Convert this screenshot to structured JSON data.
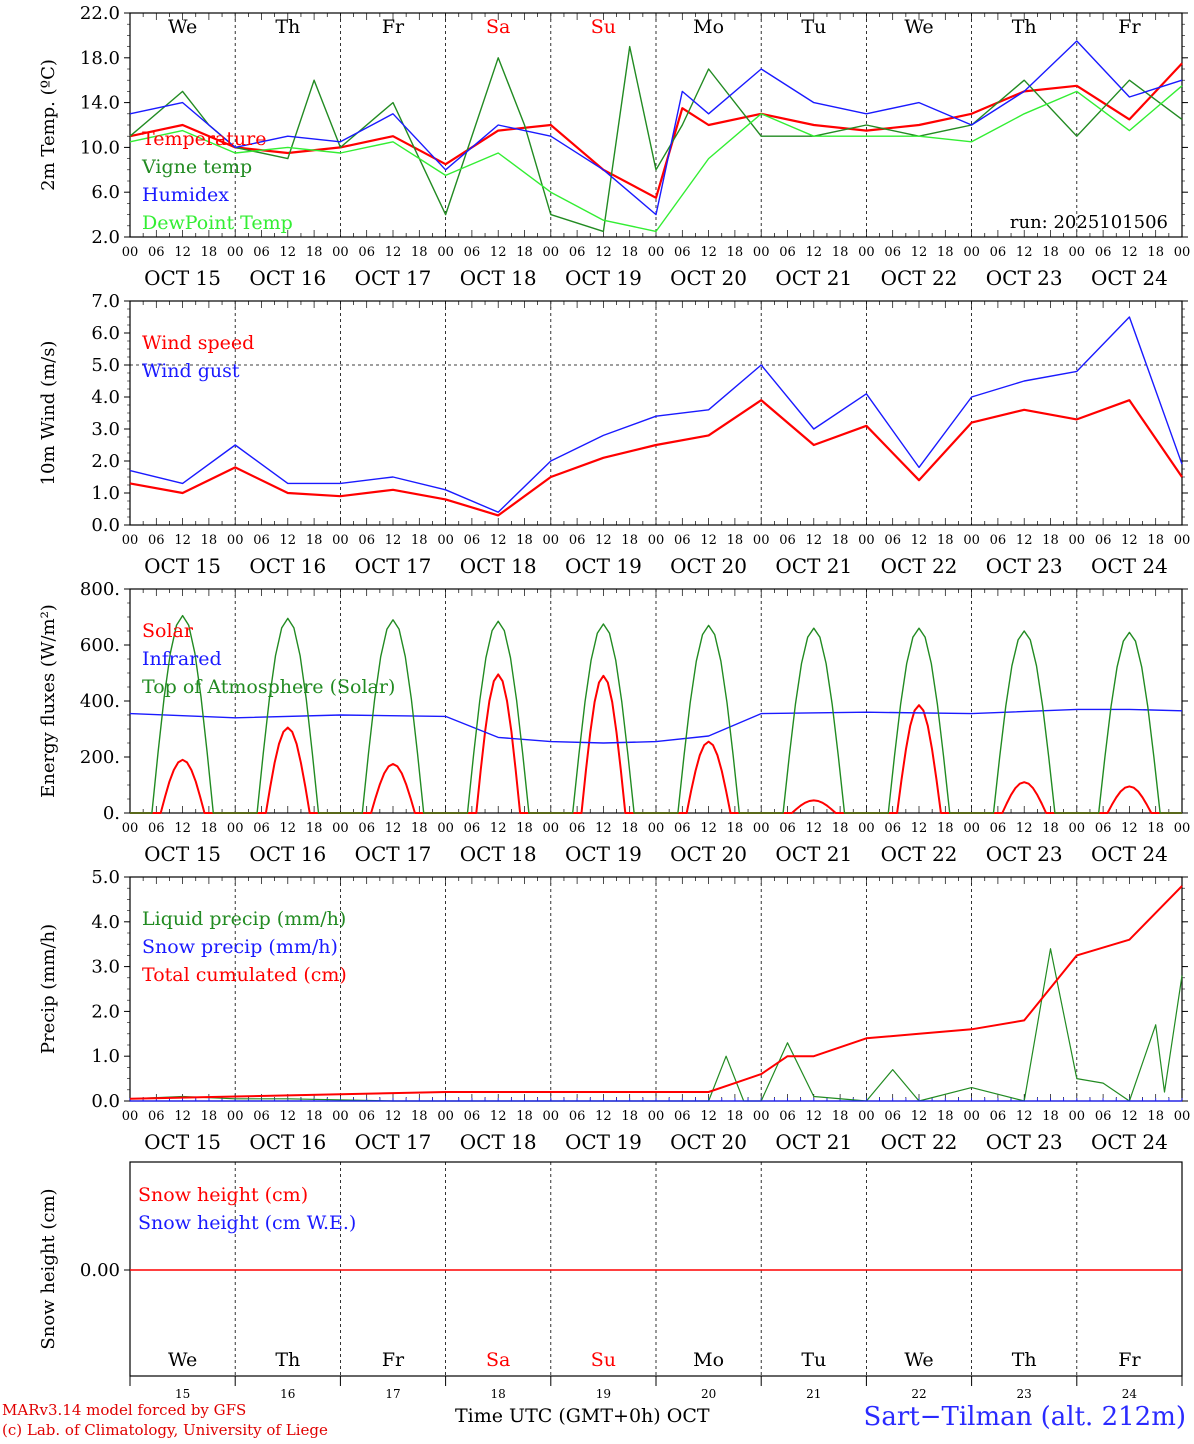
{
  "footer": {
    "model_line": "MARv3.14 model forced by GFS",
    "credit_line": "(c) Lab. of Climatology, University of Liege",
    "time_label": "Time UTC (GMT+0h)",
    "month_label": "OCT",
    "station": "Sart−Tilman (alt. 212m)"
  },
  "days": {
    "weekdays": [
      "We",
      "Th",
      "Fr",
      "Sa",
      "Su",
      "Mo",
      "Tu",
      "We",
      "Th",
      "Fr"
    ],
    "weekday_colors": [
      "#000000",
      "#000000",
      "#000000",
      "#ff0000",
      "#ff0000",
      "#000000",
      "#000000",
      "#000000",
      "#000000",
      "#000000"
    ],
    "dates": [
      "OCT 15",
      "OCT 16",
      "OCT 17",
      "OCT 18",
      "OCT 19",
      "OCT 20",
      "OCT 21",
      "OCT 22",
      "OCT 23",
      "OCT 24"
    ],
    "day_numbers": [
      "15",
      "16",
      "17",
      "18",
      "19",
      "20",
      "21",
      "22",
      "23",
      "24"
    ],
    "hour_ticks": [
      "00",
      "06",
      "12",
      "18"
    ],
    "final_tick": "00"
  },
  "colors": {
    "red": "#ff0000",
    "green": "#228b22",
    "blue": "#1a1aff",
    "lightgreen": "#33ee33"
  },
  "chart_data": [
    {
      "type": "line",
      "ylabel": "2m Temp. (ºC)",
      "ylim": [
        2,
        22
      ],
      "yticks": [
        "22.0",
        "18.0",
        "14.0",
        "10.0",
        "6.0",
        "2.0"
      ],
      "annotation": "run: 2025101506",
      "x_unit": "hours since Oct 15 00 UTC",
      "series": [
        {
          "name": "Temperature",
          "color": "red",
          "x": [
            0,
            12,
            24,
            36,
            48,
            60,
            72,
            84,
            96,
            108,
            120,
            126,
            132,
            144,
            156,
            168,
            180,
            192,
            204,
            216,
            228,
            240
          ],
          "values": [
            11,
            12,
            10,
            9.5,
            10,
            11,
            8.5,
            11.5,
            12,
            8,
            5.5,
            13.5,
            12,
            13,
            12,
            11.5,
            12,
            13,
            15,
            15.5,
            12.5,
            17.5
          ]
        },
        {
          "name": "Vigne temp",
          "color": "green",
          "x": [
            0,
            12,
            18,
            24,
            36,
            42,
            48,
            60,
            72,
            84,
            90,
            96,
            108,
            114,
            120,
            126,
            132,
            144,
            156,
            168,
            180,
            192,
            204,
            216,
            228,
            240
          ],
          "values": [
            11,
            15,
            12,
            10,
            9,
            16,
            10,
            14,
            4,
            18,
            12,
            4,
            2.5,
            19,
            8,
            12,
            17,
            11,
            11,
            12,
            11,
            12,
            16,
            11,
            16,
            12.5
          ]
        },
        {
          "name": "Humidex",
          "color": "blue",
          "x": [
            0,
            12,
            24,
            36,
            48,
            60,
            72,
            84,
            96,
            108,
            120,
            126,
            132,
            144,
            156,
            168,
            180,
            192,
            204,
            216,
            228,
            240
          ],
          "values": [
            13,
            14,
            10,
            11,
            10.5,
            13,
            8,
            12,
            11,
            8,
            4,
            15,
            13,
            17,
            14,
            13,
            14,
            12,
            15,
            19.5,
            14.5,
            16
          ]
        },
        {
          "name": "DewPoint Temp",
          "color": "lightgreen",
          "x": [
            0,
            12,
            24,
            36,
            48,
            60,
            72,
            84,
            96,
            108,
            120,
            132,
            144,
            156,
            168,
            180,
            192,
            204,
            216,
            228,
            240
          ],
          "values": [
            10.5,
            11.5,
            9.5,
            10,
            9.5,
            10.5,
            7.5,
            9.5,
            6,
            3.5,
            2.5,
            9,
            13,
            11,
            11,
            11,
            10.5,
            13,
            15,
            11.5,
            15.5
          ]
        }
      ]
    },
    {
      "type": "line",
      "ylabel": "10m Wind (m/s)",
      "ylim": [
        0,
        7
      ],
      "yticks": [
        "7.0",
        "6.0",
        "5.0",
        "4.0",
        "3.0",
        "2.0",
        "1.0",
        "0.0"
      ],
      "series": [
        {
          "name": "Wind speed",
          "color": "red",
          "x": [
            0,
            12,
            24,
            36,
            48,
            60,
            72,
            84,
            96,
            108,
            120,
            132,
            144,
            156,
            168,
            180,
            192,
            204,
            216,
            228,
            240
          ],
          "values": [
            1.3,
            1,
            1.8,
            1,
            0.9,
            1.1,
            0.8,
            0.3,
            1.5,
            2.1,
            2.5,
            2.8,
            3.9,
            2.5,
            3.1,
            1.4,
            3.2,
            3.6,
            3.3,
            3.9,
            1.5
          ]
        },
        {
          "name": "Wind gust",
          "color": "blue",
          "x": [
            0,
            12,
            24,
            36,
            48,
            60,
            72,
            84,
            96,
            108,
            120,
            132,
            144,
            156,
            168,
            180,
            192,
            204,
            216,
            228,
            240
          ],
          "values": [
            1.7,
            1.3,
            2.5,
            1.3,
            1.3,
            1.5,
            1.1,
            0.4,
            2,
            2.8,
            3.4,
            3.6,
            5,
            3,
            4.1,
            1.8,
            4,
            4.5,
            4.8,
            6.5,
            1.9
          ]
        }
      ]
    },
    {
      "type": "line",
      "ylabel": "Energy fluxes (W/m²)",
      "ylim": [
        0,
        800
      ],
      "yticks": [
        "800.",
        "600.",
        "400.",
        "200.",
        "0."
      ],
      "series": [
        {
          "name": "Solar",
          "color": "red",
          "peaks": [
            190,
            305,
            175,
            495,
            490,
            255,
            45,
            385,
            110,
            95
          ]
        },
        {
          "name": "Infrared",
          "color": "blue",
          "x": [
            0,
            24,
            48,
            72,
            84,
            96,
            108,
            120,
            132,
            144,
            168,
            192,
            216,
            228,
            240
          ],
          "values": [
            355,
            340,
            350,
            345,
            270,
            255,
            250,
            255,
            275,
            355,
            360,
            355,
            370,
            370,
            365
          ]
        },
        {
          "name": "Top of Atmosphere (Solar)",
          "color": "green",
          "peaks": [
            705,
            695,
            690,
            685,
            675,
            670,
            660,
            660,
            650,
            645
          ]
        }
      ]
    },
    {
      "type": "line",
      "ylabel": "Precip (mm/h)",
      "ylim": [
        0,
        5
      ],
      "yticks": [
        "5.0",
        "4.0",
        "3.0",
        "2.0",
        "1.0",
        "0.0"
      ],
      "series": [
        {
          "name": "Liquid precip (mm/h)",
          "color": "green",
          "x": [
            0,
            12,
            24,
            36,
            60,
            72,
            96,
            120,
            132,
            136,
            140,
            144,
            150,
            156,
            168,
            174,
            180,
            192,
            204,
            210,
            216,
            222,
            228,
            234,
            236,
            240
          ],
          "values": [
            0.05,
            0.1,
            0.05,
            0.05,
            0,
            0,
            0,
            0,
            0,
            1,
            0,
            0,
            1.3,
            0.1,
            0,
            0.7,
            0,
            0.3,
            0,
            3.4,
            0.5,
            0.4,
            0,
            1.7,
            0.2,
            2.8
          ]
        },
        {
          "name": "Snow precip (mm/h)",
          "color": "blue",
          "x": [
            0,
            240
          ],
          "values": [
            0,
            0
          ]
        },
        {
          "name": "Total cumulated (cm)",
          "color": "red",
          "x": [
            0,
            24,
            48,
            72,
            96,
            120,
            132,
            138,
            144,
            150,
            156,
            168,
            180,
            192,
            204,
            216,
            228,
            240
          ],
          "values": [
            0.05,
            0.1,
            0.15,
            0.2,
            0.2,
            0.2,
            0.2,
            0.4,
            0.6,
            1,
            1,
            1.4,
            1.5,
            1.6,
            1.8,
            3.25,
            3.6,
            4.8
          ]
        }
      ]
    },
    {
      "type": "line",
      "ylabel": "Snow height (cm)",
      "yticks": [
        "0.00"
      ],
      "series": [
        {
          "name": "Snow height (cm)",
          "color": "red",
          "x": [
            0,
            240
          ],
          "values": [
            0,
            0
          ]
        },
        {
          "name": "Snow height (cm W.E.)",
          "color": "blue",
          "x": [
            0,
            240
          ],
          "values": [
            0,
            0
          ]
        }
      ]
    }
  ]
}
